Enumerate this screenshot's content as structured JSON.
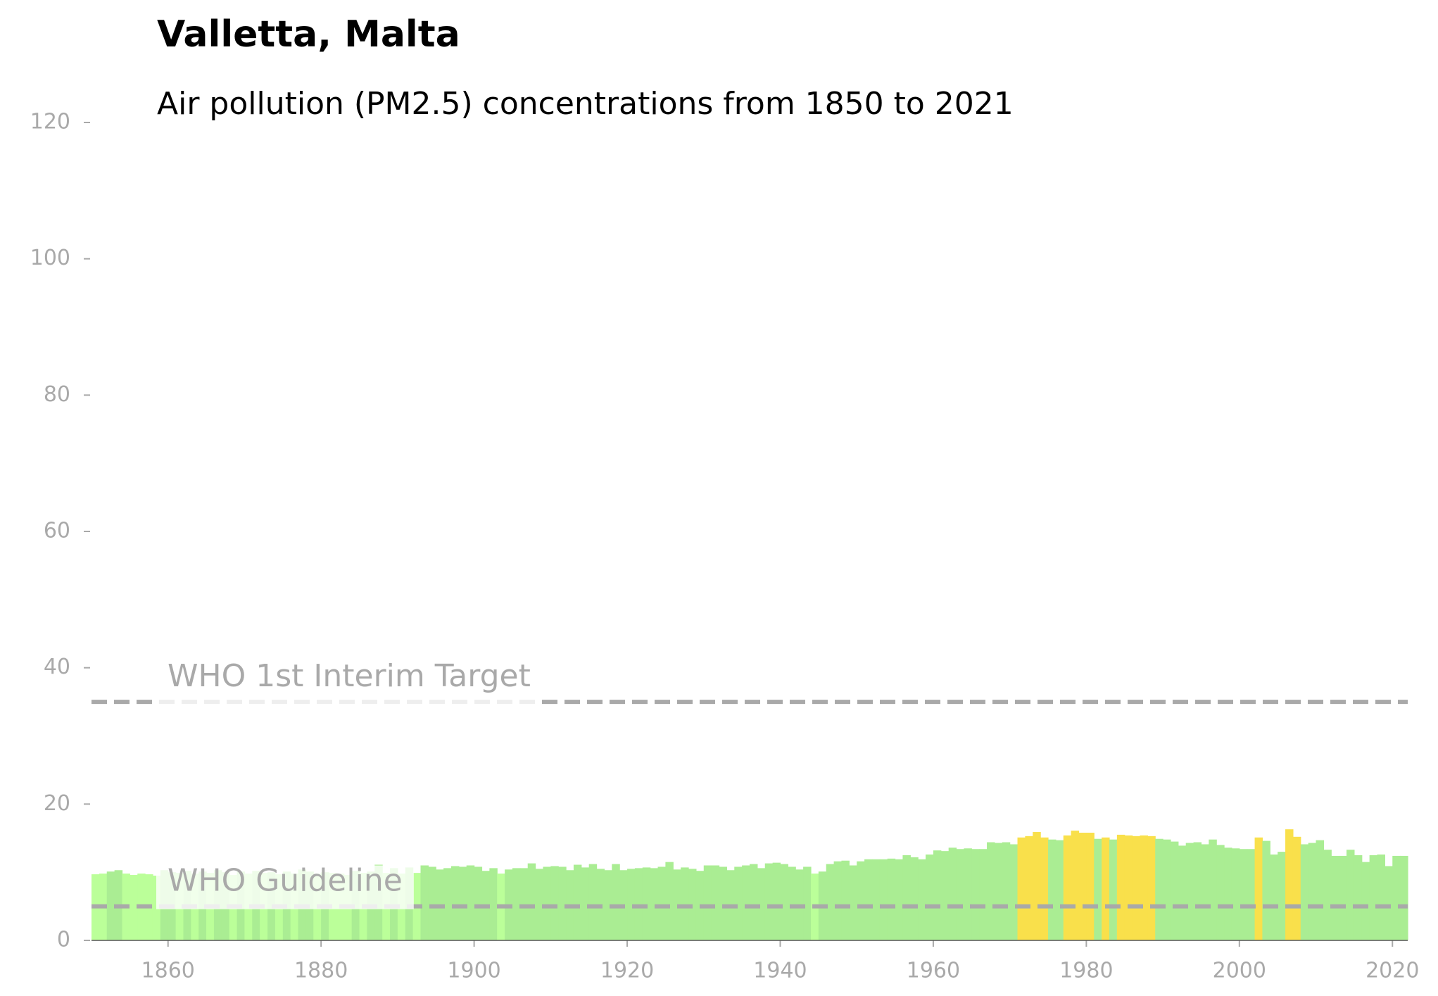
{
  "chart_data": {
    "type": "bar",
    "title": "Valletta, Malta",
    "subtitle": "Air pollution (PM2.5) concentrations from 1850 to 2021",
    "x": [
      1850,
      1851,
      1852,
      1853,
      1854,
      1855,
      1856,
      1857,
      1858,
      1859,
      1860,
      1861,
      1862,
      1863,
      1864,
      1865,
      1866,
      1867,
      1868,
      1869,
      1870,
      1871,
      1872,
      1873,
      1874,
      1875,
      1876,
      1877,
      1878,
      1879,
      1880,
      1881,
      1882,
      1883,
      1884,
      1885,
      1886,
      1887,
      1888,
      1889,
      1890,
      1891,
      1892,
      1893,
      1894,
      1895,
      1896,
      1897,
      1898,
      1899,
      1900,
      1901,
      1902,
      1903,
      1904,
      1905,
      1906,
      1907,
      1908,
      1909,
      1910,
      1911,
      1912,
      1913,
      1914,
      1915,
      1916,
      1917,
      1918,
      1919,
      1920,
      1921,
      1922,
      1923,
      1924,
      1925,
      1926,
      1927,
      1928,
      1929,
      1930,
      1931,
      1932,
      1933,
      1934,
      1935,
      1936,
      1937,
      1938,
      1939,
      1940,
      1941,
      1942,
      1943,
      1944,
      1945,
      1946,
      1947,
      1948,
      1949,
      1950,
      1951,
      1952,
      1953,
      1954,
      1955,
      1956,
      1957,
      1958,
      1959,
      1960,
      1961,
      1962,
      1963,
      1964,
      1965,
      1966,
      1967,
      1968,
      1969,
      1970,
      1971,
      1972,
      1973,
      1974,
      1975,
      1976,
      1977,
      1978,
      1979,
      1980,
      1981,
      1982,
      1983,
      1984,
      1985,
      1986,
      1987,
      1988,
      1989,
      1990,
      1991,
      1992,
      1993,
      1994,
      1995,
      1996,
      1997,
      1998,
      1999,
      2000,
      2001,
      2002,
      2003,
      2004,
      2005,
      2006,
      2007,
      2008,
      2009,
      2010,
      2011,
      2012,
      2013,
      2014,
      2015,
      2016,
      2017,
      2018,
      2019,
      2020,
      2021
    ],
    "values": [
      9.7,
      9.8,
      10.1,
      10.3,
      9.8,
      9.6,
      9.8,
      9.7,
      9.5,
      10.3,
      10.0,
      9.9,
      10.2,
      9.8,
      10.1,
      9.9,
      10.3,
      10.0,
      9.6,
      10.1,
      9.8,
      10.2,
      9.9,
      10.0,
      9.7,
      10.1,
      9.8,
      10.4,
      10.1,
      9.8,
      10.0,
      9.9,
      9.8,
      9.6,
      10.2,
      9.9,
      10.1,
      11.1,
      9.9,
      10.6,
      9.8,
      10.7,
      9.9,
      11.0,
      10.8,
      10.4,
      10.6,
      10.9,
      10.8,
      11.0,
      10.8,
      10.2,
      10.6,
      9.8,
      10.4,
      10.6,
      10.6,
      11.3,
      10.5,
      10.8,
      10.9,
      10.8,
      10.3,
      11.1,
      10.7,
      11.2,
      10.5,
      10.3,
      11.2,
      10.3,
      10.5,
      10.6,
      10.7,
      10.6,
      10.8,
      11.5,
      10.4,
      10.7,
      10.5,
      10.2,
      11.0,
      11.0,
      10.8,
      10.3,
      10.8,
      11.0,
      11.2,
      10.6,
      11.3,
      11.4,
      11.2,
      10.8,
      10.4,
      10.8,
      9.8,
      10.1,
      11.2,
      11.6,
      11.7,
      11.0,
      11.6,
      11.9,
      11.9,
      11.9,
      12.0,
      11.9,
      12.5,
      12.2,
      11.9,
      12.6,
      13.2,
      13.1,
      13.6,
      13.4,
      13.5,
      13.4,
      13.4,
      14.4,
      14.3,
      14.4,
      14.1,
      15.1,
      15.3,
      15.9,
      15.1,
      14.8,
      14.7,
      15.4,
      16.1,
      15.8,
      15.8,
      14.9,
      15.1,
      14.8,
      15.5,
      15.4,
      15.3,
      15.4,
      15.3,
      14.9,
      14.8,
      14.5,
      13.9,
      14.3,
      14.4,
      14.1,
      14.8,
      14.0,
      13.6,
      13.5,
      13.4,
      13.4,
      15.1,
      14.6,
      12.6,
      13.0,
      16.3,
      15.2,
      14.1,
      14.3,
      14.7,
      13.3,
      12.4,
      12.4,
      13.3,
      12.5,
      11.5,
      12.5,
      12.6,
      10.9,
      12.4,
      12.4
    ],
    "colors": [
      "#bbff99",
      "#bbff99",
      "#aaed93",
      "#aaed93",
      "#bbff99",
      "#bbff99",
      "#bbff99",
      "#bbff99",
      "#bbff99",
      "#aaed93",
      "#aaed93",
      "#bbff99",
      "#aaed93",
      "#bbff99",
      "#aaed93",
      "#bbff99",
      "#aaed93",
      "#aaed93",
      "#bbff99",
      "#aaed93",
      "#bbff99",
      "#aaed93",
      "#bbff99",
      "#aaed93",
      "#bbff99",
      "#aaed93",
      "#bbff99",
      "#aaed93",
      "#aaed93",
      "#bbff99",
      "#aaed93",
      "#bbff99",
      "#bbff99",
      "#bbff99",
      "#aaed93",
      "#bbff99",
      "#aaed93",
      "#aaed93",
      "#bbff99",
      "#aaed93",
      "#bbff99",
      "#aaed93",
      "#bbff99",
      "#aaed93",
      "#aaed93",
      "#aaed93",
      "#aaed93",
      "#aaed93",
      "#aaed93",
      "#aaed93",
      "#aaed93",
      "#aaed93",
      "#aaed93",
      "#bbff99",
      "#aaed93",
      "#aaed93",
      "#aaed93",
      "#aaed93",
      "#aaed93",
      "#aaed93",
      "#aaed93",
      "#aaed93",
      "#aaed93",
      "#aaed93",
      "#aaed93",
      "#aaed93",
      "#aaed93",
      "#aaed93",
      "#aaed93",
      "#aaed93",
      "#aaed93",
      "#aaed93",
      "#aaed93",
      "#aaed93",
      "#aaed93",
      "#aaed93",
      "#aaed93",
      "#aaed93",
      "#aaed93",
      "#aaed93",
      "#aaed93",
      "#aaed93",
      "#aaed93",
      "#aaed93",
      "#aaed93",
      "#aaed93",
      "#aaed93",
      "#aaed93",
      "#aaed93",
      "#aaed93",
      "#aaed93",
      "#aaed93",
      "#aaed93",
      "#aaed93",
      "#bbff99",
      "#aaed93",
      "#aaed93",
      "#aaed93",
      "#aaed93",
      "#aaed93",
      "#aaed93",
      "#aaed93",
      "#aaed93",
      "#aaed93",
      "#aaed93",
      "#aaed93",
      "#aaed93",
      "#aaed93",
      "#aaed93",
      "#aaed93",
      "#aaed93",
      "#aaed93",
      "#aaed93",
      "#aaed93",
      "#aaed93",
      "#aaed93",
      "#aaed93",
      "#aaed93",
      "#aaed93",
      "#aaed93",
      "#aaed93",
      "#f9e04b",
      "#f9e04b",
      "#f9e04b",
      "#f9e04b",
      "#aaed93",
      "#aaed93",
      "#f9e04b",
      "#f9e04b",
      "#f9e04b",
      "#f9e04b",
      "#aaed93",
      "#f9e04b",
      "#aaed93",
      "#f9e04b",
      "#f9e04b",
      "#f9e04b",
      "#f9e04b",
      "#f9e04b",
      "#aaed93",
      "#aaed93",
      "#aaed93",
      "#aaed93",
      "#aaed93",
      "#aaed93",
      "#aaed93",
      "#aaed93",
      "#aaed93",
      "#aaed93",
      "#aaed93",
      "#aaed93",
      "#aaed93",
      "#f9e04b",
      "#aaed93",
      "#aaed93",
      "#aaed93",
      "#f9e04b",
      "#f9e04b",
      "#aaed93",
      "#aaed93",
      "#aaed93",
      "#aaed93",
      "#aaed93",
      "#aaed93",
      "#aaed93",
      "#aaed93",
      "#aaed93",
      "#aaed93",
      "#aaed93",
      "#aaed93",
      "#aaed93",
      "#aaed93"
    ],
    "lines": [
      {
        "value": 35,
        "label": "WHO 1st Interim Target"
      },
      {
        "value": 5,
        "label": "WHO Guideline"
      }
    ],
    "xlim": [
      1850,
      2022
    ],
    "xticks": [
      1860,
      1880,
      1900,
      1920,
      1940,
      1960,
      1980,
      2000,
      2020
    ],
    "ylim": [
      0,
      120
    ],
    "yticks": [
      0,
      20,
      40,
      60,
      80,
      100,
      120
    ]
  }
}
